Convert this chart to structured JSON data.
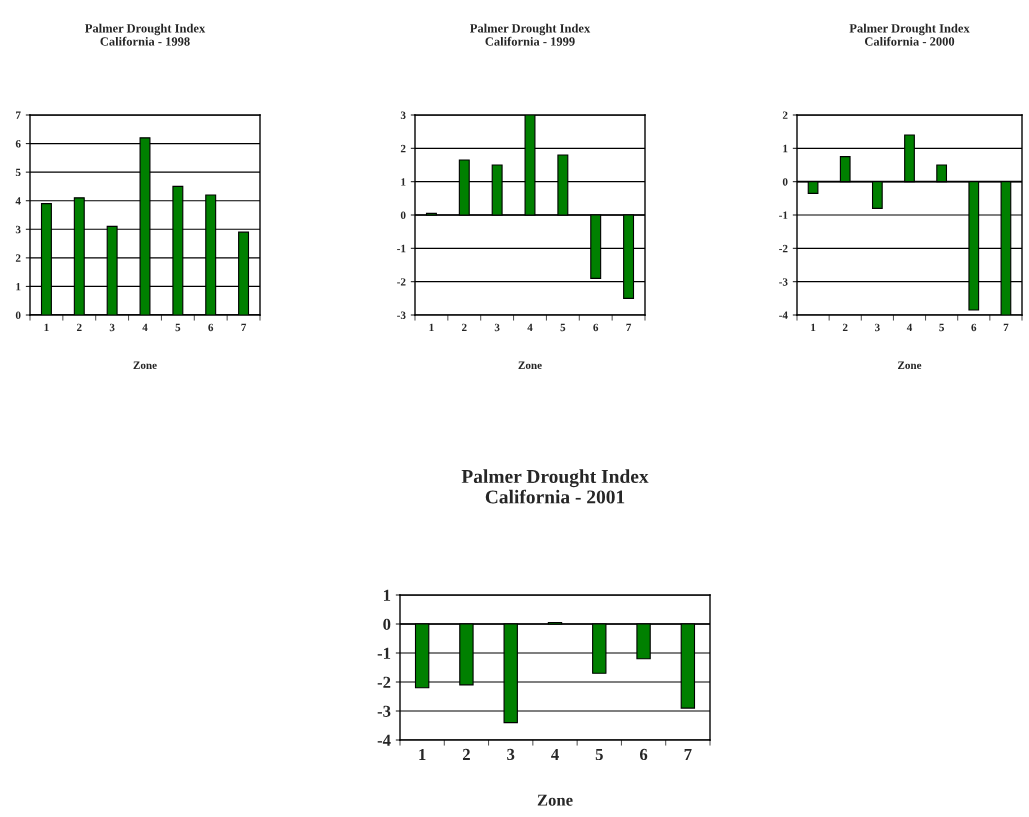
{
  "chart_data": [
    {
      "type": "bar",
      "title": "Palmer Drought Index\nCalifornia - 1998",
      "xlabel": "Zone",
      "categories": [
        "1",
        "2",
        "3",
        "4",
        "5",
        "6",
        "7"
      ],
      "values": [
        3.9,
        4.1,
        3.1,
        6.2,
        4.5,
        4.2,
        2.9
      ],
      "color": "#008000",
      "ylim": [
        0,
        7
      ],
      "yticks": [
        0,
        1,
        2,
        3,
        4,
        5,
        6,
        7
      ],
      "grid": "y",
      "legend": false
    },
    {
      "type": "bar",
      "title": "Palmer Drought Index\nCalifornia - 1999",
      "xlabel": "Zone",
      "categories": [
        "1",
        "2",
        "3",
        "4",
        "5",
        "6",
        "7"
      ],
      "values": [
        0.05,
        1.65,
        1.5,
        3.0,
        1.8,
        -1.9,
        -2.5
      ],
      "color": "#008000",
      "ylim": [
        -3,
        3
      ],
      "yticks": [
        -3,
        -2,
        -1,
        0,
        1,
        2,
        3
      ],
      "grid": "y",
      "legend": false
    },
    {
      "type": "bar",
      "title": "Palmer Drought Index\nCalifornia - 2000",
      "xlabel": "Zone",
      "categories": [
        "1",
        "2",
        "3",
        "4",
        "5",
        "6",
        "7"
      ],
      "values": [
        -0.35,
        0.75,
        -0.8,
        1.4,
        0.5,
        -3.85,
        -4.0
      ],
      "color": "#008000",
      "ylim": [
        -4,
        2
      ],
      "yticks": [
        -4,
        -3,
        -2,
        -1,
        0,
        1,
        2
      ],
      "grid": "y",
      "legend": false
    },
    {
      "type": "bar",
      "title": "Palmer Drought Index\nCalifornia - 2001",
      "xlabel": "Zone",
      "categories": [
        "1",
        "2",
        "3",
        "4",
        "5",
        "6",
        "7"
      ],
      "values": [
        -2.2,
        -2.1,
        -3.4,
        0.05,
        -1.7,
        -1.2,
        -2.9
      ],
      "color": "#008000",
      "ylim": [
        -4,
        1
      ],
      "yticks": [
        -4,
        -3,
        -2,
        -1,
        0,
        1
      ],
      "grid": "y",
      "legend": false
    }
  ]
}
